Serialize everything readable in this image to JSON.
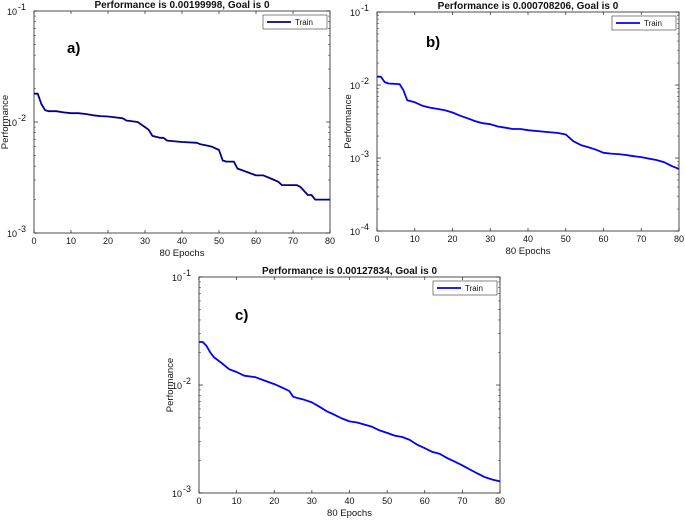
{
  "chart_data": [
    {
      "type": "line",
      "panel_label": "a)",
      "title": "Performance is 0.00199998, Goal is 0",
      "xlabel": "80 Epochs",
      "ylabel": "Performance",
      "xlim": [
        0,
        80
      ],
      "ylim": [
        0.001,
        0.1
      ],
      "yscale": "log",
      "xticks": [
        "0",
        "10",
        "20",
        "30",
        "40",
        "50",
        "60",
        "70",
        "80"
      ],
      "ytick_bases": [
        "10",
        "10",
        "10"
      ],
      "ytick_exps": [
        "-3",
        "-2",
        "-1"
      ],
      "legend": [
        "Train"
      ],
      "series": [
        {
          "name": "Train",
          "color": "#00008b",
          "x": [
            0,
            1,
            2,
            3,
            4,
            6,
            8,
            10,
            12,
            14,
            16,
            18,
            20,
            22,
            24,
            25,
            26,
            28,
            30,
            31,
            32,
            34,
            35,
            36,
            40,
            44,
            45,
            47,
            48,
            50,
            51,
            52,
            54,
            55,
            56,
            58,
            60,
            62,
            64,
            66,
            67,
            68,
            70,
            71,
            72,
            74,
            75,
            76,
            78,
            80
          ],
          "y": [
            0.018,
            0.018,
            0.0145,
            0.0128,
            0.0125,
            0.0125,
            0.0122,
            0.012,
            0.012,
            0.0118,
            0.0115,
            0.0113,
            0.0112,
            0.011,
            0.0108,
            0.0103,
            0.0102,
            0.01,
            0.009,
            0.0085,
            0.0075,
            0.0072,
            0.0072,
            0.0068,
            0.0066,
            0.0065,
            0.0063,
            0.0061,
            0.006,
            0.0056,
            0.0045,
            0.0044,
            0.0044,
            0.0038,
            0.0037,
            0.0035,
            0.0033,
            0.0033,
            0.0031,
            0.0029,
            0.0027,
            0.0027,
            0.0027,
            0.0027,
            0.0026,
            0.0022,
            0.0022,
            0.002,
            0.002,
            0.002
          ]
        }
      ]
    },
    {
      "type": "line",
      "panel_label": "b)",
      "title": "Performance is 0.000708206, Goal is 0",
      "xlabel": "80 Epochs",
      "ylabel": "Performance",
      "xlim": [
        0,
        80
      ],
      "ylim": [
        0.0001,
        0.1
      ],
      "yscale": "log",
      "xticks": [
        "0",
        "10",
        "20",
        "30",
        "40",
        "50",
        "60",
        "70",
        "80"
      ],
      "ytick_bases": [
        "10",
        "10",
        "10",
        "10"
      ],
      "ytick_exps": [
        "-4",
        "-3",
        "-2",
        "-1"
      ],
      "legend": [
        "Train"
      ],
      "series": [
        {
          "name": "Train",
          "color": "#0000ff",
          "x": [
            0,
            1,
            2,
            3,
            6,
            7,
            8,
            10,
            12,
            14,
            16,
            18,
            20,
            22,
            24,
            26,
            28,
            30,
            32,
            34,
            36,
            38,
            40,
            44,
            48,
            50,
            52,
            54,
            56,
            58,
            60,
            62,
            64,
            66,
            68,
            70,
            72,
            74,
            76,
            78,
            80
          ],
          "y": [
            0.013,
            0.013,
            0.011,
            0.0105,
            0.0103,
            0.0085,
            0.0062,
            0.0058,
            0.0052,
            0.0049,
            0.0047,
            0.0045,
            0.0042,
            0.0038,
            0.0035,
            0.0032,
            0.003,
            0.0029,
            0.0027,
            0.0026,
            0.0025,
            0.0025,
            0.0024,
            0.0023,
            0.0022,
            0.0021,
            0.0017,
            0.0015,
            0.0014,
            0.0013,
            0.00118,
            0.00115,
            0.00113,
            0.0011,
            0.00106,
            0.00103,
            0.00098,
            0.00094,
            0.00088,
            0.00078,
            0.000708
          ]
        }
      ]
    },
    {
      "type": "line",
      "panel_label": "c)",
      "title": "Performance is 0.00127834, Goal is 0",
      "xlabel": "80 Epochs",
      "ylabel": "Performance",
      "xlim": [
        0,
        80
      ],
      "ylim": [
        0.001,
        0.1
      ],
      "yscale": "log",
      "xticks": [
        "0",
        "10",
        "20",
        "30",
        "40",
        "50",
        "60",
        "70",
        "80"
      ],
      "ytick_bases": [
        "10",
        "10",
        "10"
      ],
      "ytick_exps": [
        "-3",
        "-2",
        "-1"
      ],
      "legend": [
        "Train"
      ],
      "series": [
        {
          "name": "Train",
          "color": "#0000ff",
          "x": [
            0,
            1,
            2,
            3,
            4,
            6,
            8,
            10,
            12,
            15,
            18,
            20,
            22,
            24,
            25,
            26,
            28,
            30,
            32,
            34,
            35,
            36,
            38,
            40,
            42,
            44,
            46,
            48,
            50,
            52,
            54,
            56,
            58,
            60,
            62,
            64,
            66,
            68,
            70,
            72,
            74,
            76,
            78,
            80
          ],
          "y": [
            0.025,
            0.025,
            0.023,
            0.02,
            0.018,
            0.016,
            0.014,
            0.0132,
            0.0122,
            0.0118,
            0.0108,
            0.0102,
            0.0095,
            0.0088,
            0.0078,
            0.0076,
            0.0073,
            0.0069,
            0.0063,
            0.0057,
            0.0055,
            0.0053,
            0.0049,
            0.0046,
            0.0045,
            0.0043,
            0.0041,
            0.0038,
            0.0036,
            0.0034,
            0.0033,
            0.0031,
            0.0028,
            0.0026,
            0.0024,
            0.0023,
            0.0021,
            0.00195,
            0.0018,
            0.00165,
            0.00152,
            0.0014,
            0.00133,
            0.00128
          ]
        }
      ]
    }
  ]
}
